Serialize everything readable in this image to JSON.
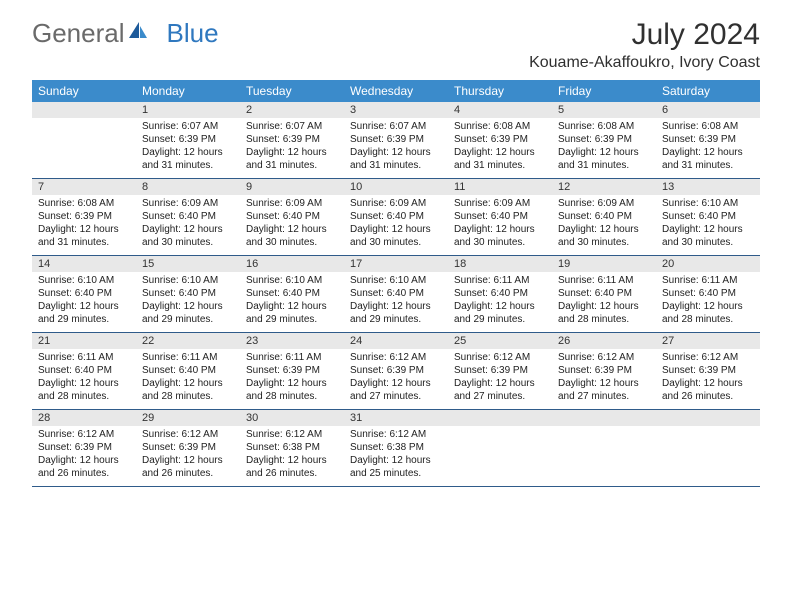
{
  "brand": {
    "part1": "General",
    "part2": "Blue"
  },
  "title": "July 2024",
  "location": "Kouame-Akaffoukro, Ivory Coast",
  "colors": {
    "header_bg": "#3b8bcb",
    "header_text": "#ffffff",
    "daynum_bg": "#e8e8e8",
    "cell_border": "#2f5b8a",
    "brand_gray": "#6a6a6a",
    "brand_blue": "#2f78bf"
  },
  "fonts": {
    "title_size": 30,
    "location_size": 16,
    "th_size": 12,
    "cell_size": 10
  },
  "days_of_week": [
    "Sunday",
    "Monday",
    "Tuesday",
    "Wednesday",
    "Thursday",
    "Friday",
    "Saturday"
  ],
  "start_offset": 1,
  "days": [
    {
      "n": 1,
      "sr": "6:07 AM",
      "ss": "6:39 PM",
      "dl": "12 hours and 31 minutes."
    },
    {
      "n": 2,
      "sr": "6:07 AM",
      "ss": "6:39 PM",
      "dl": "12 hours and 31 minutes."
    },
    {
      "n": 3,
      "sr": "6:07 AM",
      "ss": "6:39 PM",
      "dl": "12 hours and 31 minutes."
    },
    {
      "n": 4,
      "sr": "6:08 AM",
      "ss": "6:39 PM",
      "dl": "12 hours and 31 minutes."
    },
    {
      "n": 5,
      "sr": "6:08 AM",
      "ss": "6:39 PM",
      "dl": "12 hours and 31 minutes."
    },
    {
      "n": 6,
      "sr": "6:08 AM",
      "ss": "6:39 PM",
      "dl": "12 hours and 31 minutes."
    },
    {
      "n": 7,
      "sr": "6:08 AM",
      "ss": "6:39 PM",
      "dl": "12 hours and 31 minutes."
    },
    {
      "n": 8,
      "sr": "6:09 AM",
      "ss": "6:40 PM",
      "dl": "12 hours and 30 minutes."
    },
    {
      "n": 9,
      "sr": "6:09 AM",
      "ss": "6:40 PM",
      "dl": "12 hours and 30 minutes."
    },
    {
      "n": 10,
      "sr": "6:09 AM",
      "ss": "6:40 PM",
      "dl": "12 hours and 30 minutes."
    },
    {
      "n": 11,
      "sr": "6:09 AM",
      "ss": "6:40 PM",
      "dl": "12 hours and 30 minutes."
    },
    {
      "n": 12,
      "sr": "6:09 AM",
      "ss": "6:40 PM",
      "dl": "12 hours and 30 minutes."
    },
    {
      "n": 13,
      "sr": "6:10 AM",
      "ss": "6:40 PM",
      "dl": "12 hours and 30 minutes."
    },
    {
      "n": 14,
      "sr": "6:10 AM",
      "ss": "6:40 PM",
      "dl": "12 hours and 29 minutes."
    },
    {
      "n": 15,
      "sr": "6:10 AM",
      "ss": "6:40 PM",
      "dl": "12 hours and 29 minutes."
    },
    {
      "n": 16,
      "sr": "6:10 AM",
      "ss": "6:40 PM",
      "dl": "12 hours and 29 minutes."
    },
    {
      "n": 17,
      "sr": "6:10 AM",
      "ss": "6:40 PM",
      "dl": "12 hours and 29 minutes."
    },
    {
      "n": 18,
      "sr": "6:11 AM",
      "ss": "6:40 PM",
      "dl": "12 hours and 29 minutes."
    },
    {
      "n": 19,
      "sr": "6:11 AM",
      "ss": "6:40 PM",
      "dl": "12 hours and 28 minutes."
    },
    {
      "n": 20,
      "sr": "6:11 AM",
      "ss": "6:40 PM",
      "dl": "12 hours and 28 minutes."
    },
    {
      "n": 21,
      "sr": "6:11 AM",
      "ss": "6:40 PM",
      "dl": "12 hours and 28 minutes."
    },
    {
      "n": 22,
      "sr": "6:11 AM",
      "ss": "6:40 PM",
      "dl": "12 hours and 28 minutes."
    },
    {
      "n": 23,
      "sr": "6:11 AM",
      "ss": "6:39 PM",
      "dl": "12 hours and 28 minutes."
    },
    {
      "n": 24,
      "sr": "6:12 AM",
      "ss": "6:39 PM",
      "dl": "12 hours and 27 minutes."
    },
    {
      "n": 25,
      "sr": "6:12 AM",
      "ss": "6:39 PM",
      "dl": "12 hours and 27 minutes."
    },
    {
      "n": 26,
      "sr": "6:12 AM",
      "ss": "6:39 PM",
      "dl": "12 hours and 27 minutes."
    },
    {
      "n": 27,
      "sr": "6:12 AM",
      "ss": "6:39 PM",
      "dl": "12 hours and 26 minutes."
    },
    {
      "n": 28,
      "sr": "6:12 AM",
      "ss": "6:39 PM",
      "dl": "12 hours and 26 minutes."
    },
    {
      "n": 29,
      "sr": "6:12 AM",
      "ss": "6:39 PM",
      "dl": "12 hours and 26 minutes."
    },
    {
      "n": 30,
      "sr": "6:12 AM",
      "ss": "6:38 PM",
      "dl": "12 hours and 26 minutes."
    },
    {
      "n": 31,
      "sr": "6:12 AM",
      "ss": "6:38 PM",
      "dl": "12 hours and 25 minutes."
    }
  ],
  "labels": {
    "sunrise": "Sunrise:",
    "sunset": "Sunset:",
    "daylight": "Daylight:"
  }
}
